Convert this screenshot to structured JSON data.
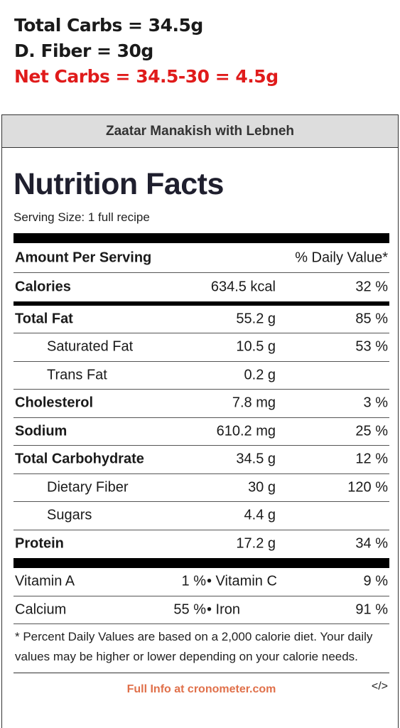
{
  "annotation": {
    "line1": "Total Carbs = 34.5g",
    "line2": "D. Fiber = 30g",
    "line3": "Net Carbs = 34.5-30 = 4.5g",
    "line3_color": "#e01b1b"
  },
  "recipe_title": "Zaatar Manakish with Lebneh",
  "heading": "Nutrition Facts",
  "serving_size": "Serving Size: 1 full recipe",
  "header": {
    "amount": "Amount Per Serving",
    "daily_value": "% Daily Value*"
  },
  "calories": {
    "name": "Calories",
    "amount": "634.5 kcal",
    "dv": "32 %"
  },
  "nutrients": [
    {
      "name": "Total Fat",
      "amount": "55.2 g",
      "dv": "85 %"
    },
    {
      "name": "Saturated Fat",
      "amount": "10.5 g",
      "dv": "53 %"
    },
    {
      "name": "Trans Fat",
      "amount": "0.2 g",
      "dv": ""
    },
    {
      "name": "Cholesterol",
      "amount": "7.8 mg",
      "dv": "3 %"
    },
    {
      "name": "Sodium",
      "amount": "610.2 mg",
      "dv": "25 %"
    },
    {
      "name": "Total Carbohydrate",
      "amount": "34.5 g",
      "dv": "12 %"
    },
    {
      "name": "Dietary Fiber",
      "amount": "30 g",
      "dv": "120 %"
    },
    {
      "name": "Sugars",
      "amount": "4.4 g",
      "dv": ""
    },
    {
      "name": "Protein",
      "amount": "17.2 g",
      "dv": "34 %"
    }
  ],
  "vitamins": [
    {
      "name1": "Vitamin A",
      "dv1": "1 %",
      "name2": "• Vitamin C",
      "dv2": "9 %"
    },
    {
      "name1": "Calcium",
      "dv1": "55 %",
      "name2": "• Iron",
      "dv2": "91 %"
    }
  ],
  "footnote": "* Percent Daily Values are based on a 2,000 calorie diet. Your daily values may be higher or lower depending on your calorie needs.",
  "footer_link": "Full Info at cronometer.com",
  "embed_label": "</>",
  "link_color": "#e0704a"
}
